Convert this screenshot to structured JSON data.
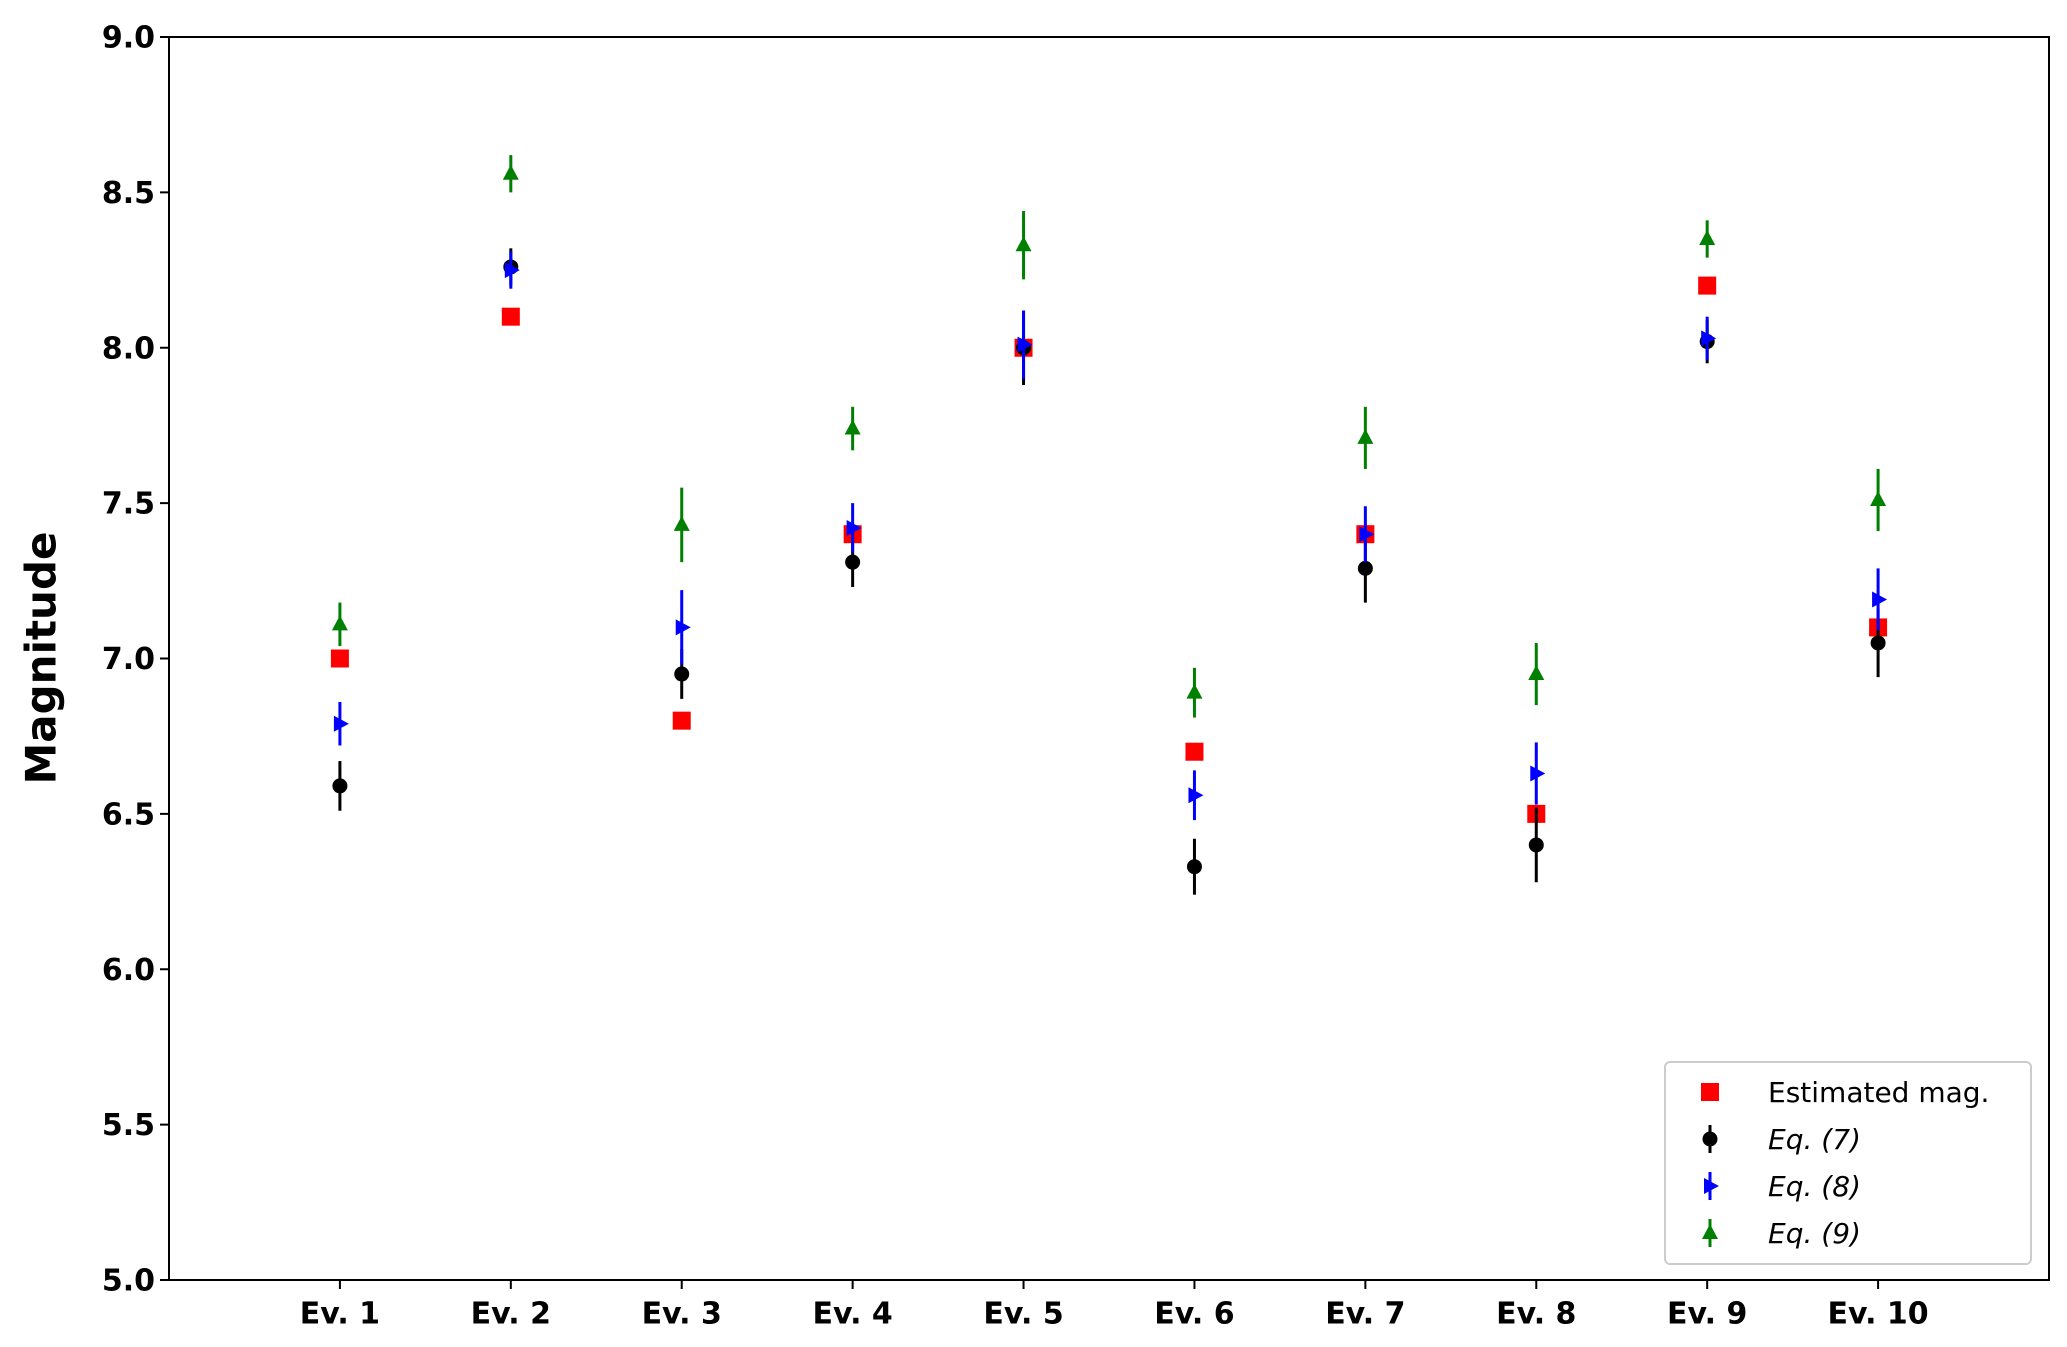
{
  "chart_data": {
    "type": "errorbar",
    "y_label": "Magnitude",
    "categories": [
      "Ev. 1",
      "Ev. 2",
      "Ev. 3",
      "Ev. 4",
      "Ev. 5",
      "Ev. 6",
      "Ev. 7",
      "Ev. 8",
      "Ev. 9",
      "Ev. 10"
    ],
    "ylim": [
      5.0,
      9.0
    ],
    "yticks": [
      {
        "value": 5,
        "label": "5.0"
      },
      5.5,
      {
        "value": 6,
        "label": "6.0"
      },
      6.5,
      {
        "value": 7,
        "label": "7.0"
      },
      7.5,
      {
        "value": 8,
        "label": "8.0"
      },
      8.5,
      {
        "value": 9,
        "label": "9.0"
      }
    ],
    "grid": false,
    "legend": "lower right",
    "series": [
      {
        "name": "Estimated mag.",
        "color": "#ff0000",
        "marker": "square",
        "values": [
          7.0,
          8.1,
          6.8,
          7.4,
          8.0,
          6.7,
          7.4,
          6.5,
          8.2,
          7.1
        ]
      },
      {
        "name": "Eq. (7)",
        "color": "#000000",
        "marker": "circle",
        "values": [
          6.59,
          8.26,
          6.95,
          7.31,
          8.0,
          6.33,
          7.29,
          6.4,
          8.02,
          7.05
        ],
        "errors": [
          0.08,
          0.06,
          0.08,
          0.08,
          0.12,
          0.09,
          0.11,
          0.12,
          0.07,
          0.11
        ]
      },
      {
        "name": "Eq. (8)",
        "color": "#0000ff",
        "marker": "triangle-right",
        "values": [
          6.79,
          8.25,
          7.1,
          7.42,
          8.01,
          6.56,
          7.4,
          6.63,
          8.03,
          7.19
        ],
        "errors": [
          0.07,
          0.06,
          0.12,
          0.08,
          0.11,
          0.08,
          0.09,
          0.1,
          0.07,
          0.1
        ]
      },
      {
        "name": "Eq. (9)",
        "color": "#008000",
        "marker": "triangle-up",
        "values": [
          7.11,
          8.56,
          7.43,
          7.74,
          8.33,
          6.89,
          7.71,
          6.95,
          8.35,
          7.51
        ],
        "errors": [
          0.07,
          0.06,
          0.12,
          0.07,
          0.11,
          0.08,
          0.1,
          0.1,
          0.06,
          0.1
        ]
      }
    ]
  }
}
